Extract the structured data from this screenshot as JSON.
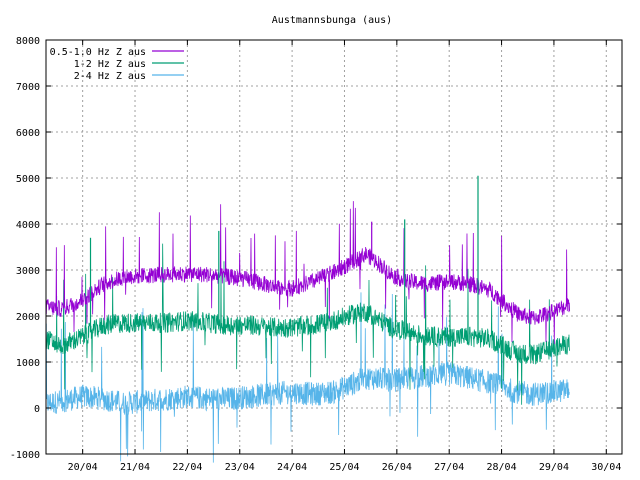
{
  "chart_data": {
    "type": "line",
    "title": "Austmannsbunga (aus)",
    "xlabel": "",
    "ylabel": "",
    "ylim": [
      -1000,
      8000
    ],
    "yticks": [
      "-1000",
      "0",
      "1000",
      "2000",
      "3000",
      "4000",
      "5000",
      "6000",
      "7000",
      "8000"
    ],
    "xticks": [
      "20/04",
      "21/04",
      "22/04",
      "23/04",
      "24/04",
      "25/04",
      "26/04",
      "27/04",
      "28/04",
      "29/04",
      "30/04"
    ],
    "xlim_days": [
      19.3,
      30.3
    ],
    "grid": true,
    "legend_position": "top-left",
    "series": [
      {
        "name": "0.5-1.0 Hz Z aus",
        "color": "#9400d3",
        "noise": 180,
        "x": [
          19.3,
          19.6,
          20.0,
          20.4,
          20.8,
          21.2,
          21.6,
          22.0,
          22.4,
          22.8,
          23.2,
          23.6,
          24.0,
          24.4,
          24.8,
          25.2,
          25.4,
          25.6,
          25.9,
          26.2,
          26.6,
          27.0,
          27.4,
          27.8,
          28.0,
          28.3,
          28.6,
          29.0,
          29.3
        ],
        "y": [
          2200,
          2150,
          2350,
          2700,
          2850,
          2880,
          2900,
          2920,
          2900,
          2850,
          2780,
          2650,
          2600,
          2750,
          2950,
          3200,
          3350,
          3200,
          2900,
          2750,
          2700,
          2750,
          2700,
          2550,
          2350,
          2050,
          1950,
          2100,
          2250
        ]
      },
      {
        "name": "1-2 Hz Z aus",
        "color": "#009e73",
        "noise": 220,
        "x": [
          19.3,
          19.6,
          20.0,
          20.4,
          20.8,
          21.2,
          21.6,
          22.0,
          22.4,
          22.8,
          23.2,
          23.6,
          24.0,
          24.4,
          24.8,
          25.2,
          25.4,
          25.6,
          25.9,
          26.2,
          26.6,
          27.0,
          27.4,
          27.8,
          28.0,
          28.3,
          28.6,
          29.0,
          29.3
        ],
        "y": [
          1500,
          1350,
          1550,
          1800,
          1850,
          1850,
          1850,
          1900,
          1850,
          1800,
          1800,
          1750,
          1750,
          1800,
          1900,
          2050,
          2100,
          1950,
          1750,
          1650,
          1550,
          1550,
          1550,
          1500,
          1350,
          1200,
          1150,
          1300,
          1400
        ]
      },
      {
        "name": "2-4 Hz Z aus",
        "color": "#56b4e9",
        "noise": 260,
        "x": [
          19.3,
          19.6,
          20.0,
          20.4,
          20.8,
          21.2,
          21.6,
          22.0,
          22.4,
          22.8,
          23.2,
          23.6,
          24.0,
          24.4,
          24.8,
          25.2,
          25.4,
          25.6,
          25.9,
          26.2,
          26.6,
          27.0,
          27.4,
          27.8,
          28.0,
          28.3,
          28.6,
          29.0,
          29.3
        ],
        "y": [
          100,
          150,
          250,
          200,
          100,
          150,
          200,
          250,
          200,
          200,
          250,
          300,
          350,
          300,
          350,
          550,
          650,
          650,
          600,
          650,
          700,
          750,
          650,
          550,
          450,
          350,
          300,
          350,
          400
        ]
      }
    ],
    "spikes": [
      {
        "series": 0,
        "x": 25.52,
        "y": 4050
      },
      {
        "series": 1,
        "x": 27.55,
        "y": 5050
      },
      {
        "series": 1,
        "x": 26.15,
        "y": 4100
      },
      {
        "series": 1,
        "x": 22.6,
        "y": 3850
      },
      {
        "series": 1,
        "x": 20.15,
        "y": 3700
      }
    ]
  }
}
